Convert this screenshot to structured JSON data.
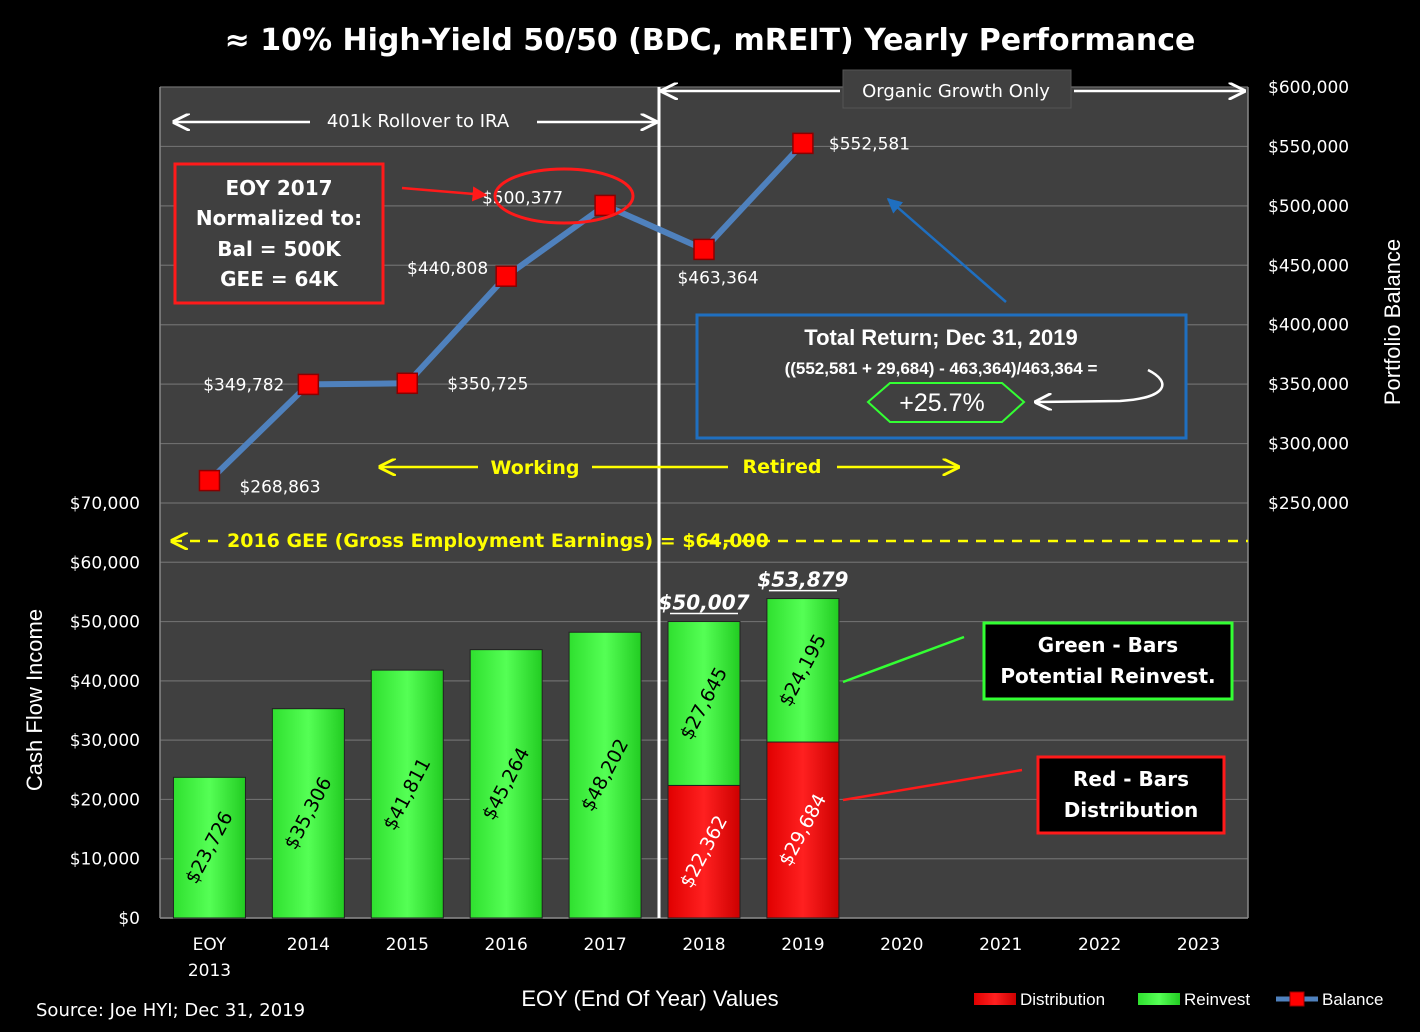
{
  "chart_data": {
    "type": "bar",
    "title": "≈ 10% High-Yield 50/50 (BDC, mREIT) Yearly Performance",
    "xlabel": "EOY (End Of Year) Values",
    "ylabel_left": "Cash Flow Income",
    "ylabel_right": "Portfolio Balance",
    "categories": [
      [
        "EOY",
        "2013"
      ],
      [
        "2014"
      ],
      [
        "2015"
      ],
      [
        "2016"
      ],
      [
        "2017"
      ],
      [
        "2018"
      ],
      [
        "2019"
      ],
      [
        "2020"
      ],
      [
        "2021"
      ],
      [
        "2022"
      ],
      [
        "2023"
      ]
    ],
    "y_left": {
      "min": 0,
      "max": 70000,
      "step": 10000,
      "ticks": [
        "$0",
        "$10,000",
        "$20,000",
        "$30,000",
        "$40,000",
        "$50,000",
        "$60,000",
        "$70,000"
      ]
    },
    "y_right": {
      "min": 250000,
      "max": 600000,
      "step": 50000,
      "ticks": [
        "$250,000",
        "$300,000",
        "$350,000",
        "$400,000",
        "$450,000",
        "$500,000",
        "$550,000",
        "$600,000"
      ]
    },
    "series": [
      {
        "name": "Distribution",
        "color": "#ff0000",
        "values": [
          null,
          null,
          null,
          null,
          null,
          22362,
          29684,
          null,
          null,
          null,
          null
        ],
        "labels": [
          "",
          "",
          "",
          "",
          "",
          "$22,362",
          "$29,684",
          "",
          "",
          "",
          ""
        ]
      },
      {
        "name": "Reinvest",
        "color": "#33ff33",
        "values": [
          23726,
          35306,
          41811,
          45264,
          48202,
          27645,
          24195,
          null,
          null,
          null,
          null
        ],
        "labels": [
          "$23,726",
          "$35,306",
          "$41,811",
          "$45,264",
          "$48,202",
          "$27,645",
          "$24,195",
          "",
          "",
          "",
          ""
        ]
      },
      {
        "name": "Balance",
        "color": "#4f81bd",
        "type": "line",
        "values": [
          268863,
          349782,
          350725,
          440808,
          500377,
          463364,
          552581,
          null,
          null,
          null,
          null
        ],
        "labels": [
          "$268,863",
          "$349,782",
          "$350,725",
          "$440,808",
          "$500,377",
          "$463,364",
          "$552,581",
          "",
          "",
          "",
          ""
        ]
      }
    ],
    "bar_totals": [
      {
        "index": 5,
        "label": "$50,007"
      },
      {
        "index": 6,
        "label": "$53,879"
      }
    ],
    "gee_line": {
      "value": 64000,
      "label": "2016 GEE (Gross Employment Earnings) = $64,000"
    },
    "legend_position": "bottom-right"
  },
  "annotations": {
    "rollover": "401k Rollover to IRA",
    "organic": "Organic Growth Only",
    "working": "Working",
    "retired": "Retired",
    "eoy_box": [
      "EOY 2017",
      "Normalized to:",
      "Bal = 500K",
      "GEE = 64K"
    ],
    "total_return_title": "Total Return; Dec 31, 2019",
    "total_return_formula": "((552,581 + 29,684) - 463,364)/463,364 =",
    "total_return_value": "+25.7%",
    "green_box": [
      "Green - Bars",
      "Potential Reinvest."
    ],
    "red_box": [
      "Red - Bars",
      "Distribution"
    ],
    "source": "Source: Joe HYI; Dec 31, 2019"
  },
  "colors": {
    "plot_bg": "#404040",
    "grid": "#6e6e6e",
    "yellow": "#ffff00",
    "blue_box": "#1f6fc0",
    "red_box": "#ff1a1a",
    "green_box": "#33ff33"
  }
}
